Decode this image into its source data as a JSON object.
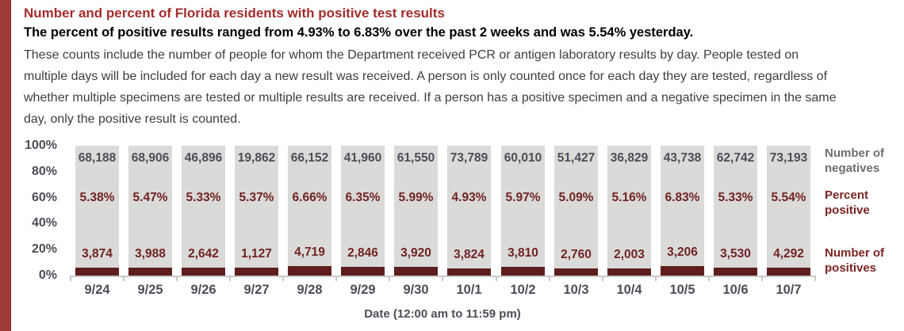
{
  "colors": {
    "accent_border": "#9d3a3a",
    "title_red": "#a32c2c",
    "subtitle_black": "#000000",
    "body_text": "#3e3e40",
    "bar_gray": "#dadad9",
    "bar_dark_red": "#5e1e1e",
    "value_red": "#712323",
    "value_gray": "#4b4e56",
    "legend_gray": "#6d6d6d",
    "legend_red": "#7b2424",
    "axis_gray": "#c9c9c9"
  },
  "header": {
    "title": "Number and percent of Florida residents with positive test results",
    "subtitle": "The percent of positive results ranged from 4.93% to 6.83% over the past 2 weeks and was 5.54% yesterday.",
    "description": "These counts include the number of people for whom the Department received PCR or antigen laboratory results by day. People tested on multiple days will be included for each day a new result was received. A person is only counted once for each day they are tested, regardless of whether multiple specimens are tested or multiple results are received. If a person has a positive specimen and a negative specimen in the same day, only the positive result is counted."
  },
  "chart_data": {
    "type": "bar",
    "stacked": true,
    "title": "Number and percent of Florida residents with positive test results",
    "xlabel": "Date (12:00 am to 11:59 pm)",
    "ylabel": "",
    "ylim": [
      0,
      100
    ],
    "y_ticks": [
      "100%",
      "80%",
      "60%",
      "40%",
      "20%",
      "0%"
    ],
    "grid": false,
    "legend_position": "right",
    "categories": [
      "9/24",
      "9/25",
      "9/26",
      "9/27",
      "9/28",
      "9/29",
      "9/30",
      "10/1",
      "10/2",
      "10/3",
      "10/4",
      "10/5",
      "10/6",
      "10/7"
    ],
    "series": [
      {
        "name": "Number of negatives",
        "values": [
          68188,
          68906,
          46896,
          19862,
          66152,
          41960,
          61550,
          73789,
          60010,
          51427,
          36829,
          43738,
          62742,
          73193
        ],
        "labels": [
          "68,188",
          "68,906",
          "46,896",
          "19,862",
          "66,152",
          "41,960",
          "61,550",
          "73,789",
          "60,010",
          "51,427",
          "36,829",
          "43,738",
          "62,742",
          "73,193"
        ]
      },
      {
        "name": "Percent positive",
        "values": [
          5.38,
          5.47,
          5.33,
          5.37,
          6.66,
          6.35,
          5.99,
          4.93,
          5.97,
          5.09,
          5.16,
          6.83,
          5.33,
          5.54
        ],
        "labels": [
          "5.38%",
          "5.47%",
          "5.33%",
          "5.37%",
          "6.66%",
          "6.35%",
          "5.99%",
          "4.93%",
          "5.97%",
          "5.09%",
          "5.16%",
          "6.83%",
          "5.33%",
          "5.54%"
        ]
      },
      {
        "name": "Number of positives",
        "values": [
          3874,
          3988,
          2642,
          1127,
          4719,
          2846,
          3920,
          3824,
          3810,
          2760,
          2003,
          3206,
          3530,
          4292
        ],
        "labels": [
          "3,874",
          "3,988",
          "2,642",
          "1,127",
          "4,719",
          "2,846",
          "3,920",
          "3,824",
          "3,810",
          "2,760",
          "2,003",
          "3,206",
          "3,530",
          "4,292"
        ]
      }
    ]
  }
}
